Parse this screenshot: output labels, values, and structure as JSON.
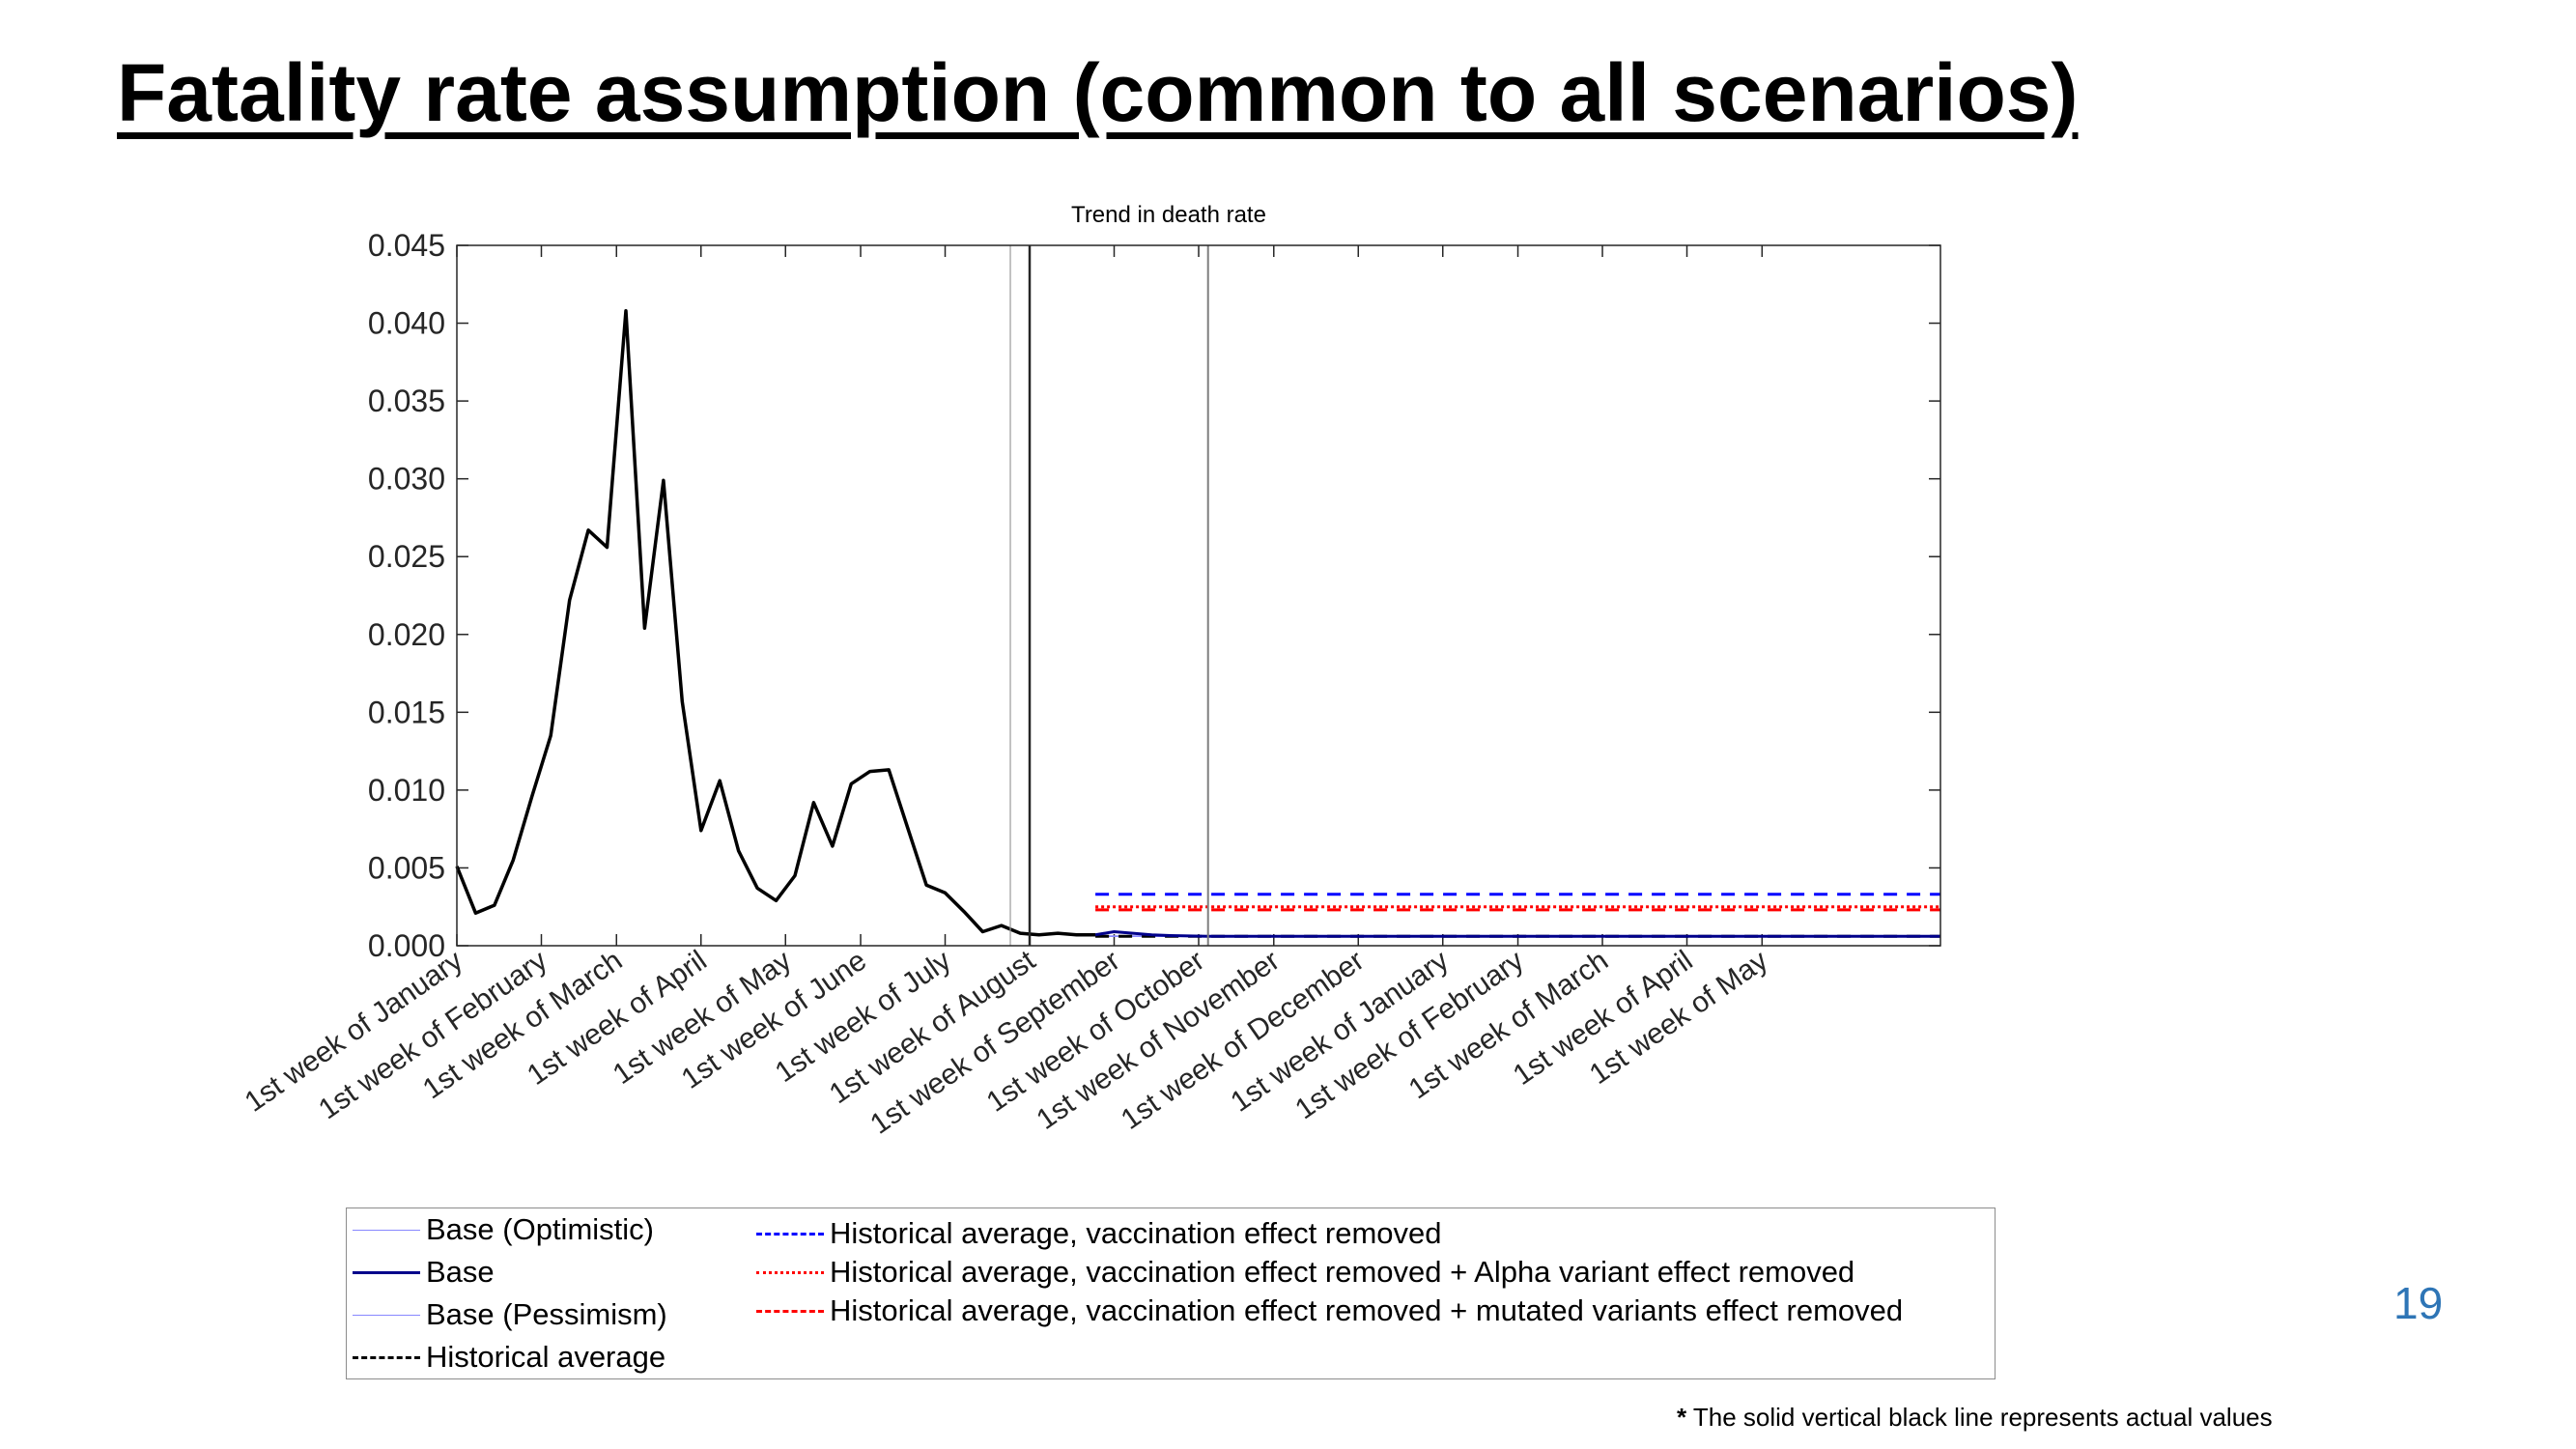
{
  "slide": {
    "title": "Fatality rate assumption (common to all scenarios)",
    "page_number": "19",
    "footnote_marker": "*",
    "footnote_text": " The solid vertical black line represents actual values"
  },
  "chart_data": {
    "type": "line",
    "title": "Trend in death rate",
    "xlabel": "",
    "ylabel": "",
    "ylim": [
      0,
      0.045
    ],
    "y_ticks": [
      "0.000",
      "0.005",
      "0.010",
      "0.015",
      "0.020",
      "0.025",
      "0.030",
      "0.035",
      "0.040",
      "0.045"
    ],
    "x_tick_labels": [
      "1st week of January",
      "1st week of February",
      "1st week of March",
      "1st week of April",
      "1st week of May",
      "1st week of June",
      "1st week of July",
      "1st week of August",
      "1st week of September",
      "1st week of October",
      "1st week of November",
      "1st week of December",
      "1st week of January",
      "1st week of February",
      "1st week of March",
      "1st week of April",
      "1st week of May"
    ],
    "x_tick_week_index": [
      0,
      4.5,
      8.5,
      13,
      17.5,
      21.5,
      26,
      30.5,
      35,
      39.5,
      43.5,
      48,
      52.5,
      56.5,
      61,
      65.5,
      69.5
    ],
    "x_range_weeks": [
      0,
      79
    ],
    "vertical_lines_week": [
      30.5,
      40
    ],
    "legend_position": "bottom",
    "series": [
      {
        "name": "Base (Optimistic)",
        "color": "#8888ff",
        "style": "solid",
        "weeks": [
          34,
          79
        ],
        "values": [
          0.0006,
          0.0006
        ]
      },
      {
        "name": "Base",
        "color": "#00008b",
        "style": "solid",
        "weeks": [
          34,
          35,
          36,
          37,
          38,
          40,
          79
        ],
        "values": [
          0.0007,
          0.0009,
          0.0008,
          0.0007,
          0.00065,
          0.0006,
          0.0006
        ]
      },
      {
        "name": "Base (Pessimism)",
        "color": "#8888ff",
        "style": "solid",
        "weeks": [
          34,
          79
        ],
        "values": [
          0.00062,
          0.00062
        ]
      },
      {
        "name": "Historical average",
        "color": "#000000",
        "style": "dashed",
        "weeks": [
          34,
          79
        ],
        "values": [
          0.0006,
          0.0006
        ]
      },
      {
        "name": "Historical average, vaccination effect removed",
        "color": "#0000ff",
        "style": "dashed",
        "weeks": [
          34,
          79
        ],
        "values": [
          0.0033,
          0.0033
        ]
      },
      {
        "name": "Historical average, vaccination effect removed + Alpha variant effect removed",
        "color": "#ff0000",
        "style": "dotted",
        "weeks": [
          34,
          79
        ],
        "values": [
          0.0025,
          0.0025
        ]
      },
      {
        "name": "Historical average, vaccination effect removed + mutated variants effect removed",
        "color": "#ff0000",
        "style": "dashed",
        "weeks": [
          34,
          79
        ],
        "values": [
          0.0023,
          0.0023
        ]
      },
      {
        "name": "",
        "color": "#000000",
        "style": "solid",
        "weeks": [
          0,
          1,
          2,
          3,
          4,
          5,
          6,
          7,
          8,
          9,
          10,
          11,
          12,
          13,
          14,
          15,
          16,
          17,
          18,
          19,
          20,
          21,
          22,
          23,
          24,
          25,
          26,
          27,
          28,
          29,
          30,
          31,
          32,
          33,
          34
        ],
        "values": [
          0.0051,
          0.0021,
          0.0026,
          0.0055,
          0.0096,
          0.0135,
          0.0222,
          0.0267,
          0.0256,
          0.0408,
          0.0204,
          0.0299,
          0.0157,
          0.0074,
          0.0106,
          0.0061,
          0.0037,
          0.0029,
          0.0045,
          0.0092,
          0.0064,
          0.0104,
          0.0112,
          0.0113,
          0.0076,
          0.0039,
          0.0034,
          0.0022,
          0.0009,
          0.0013,
          0.0008,
          0.0007,
          0.0008,
          0.0007,
          0.0007
        ]
      }
    ]
  }
}
